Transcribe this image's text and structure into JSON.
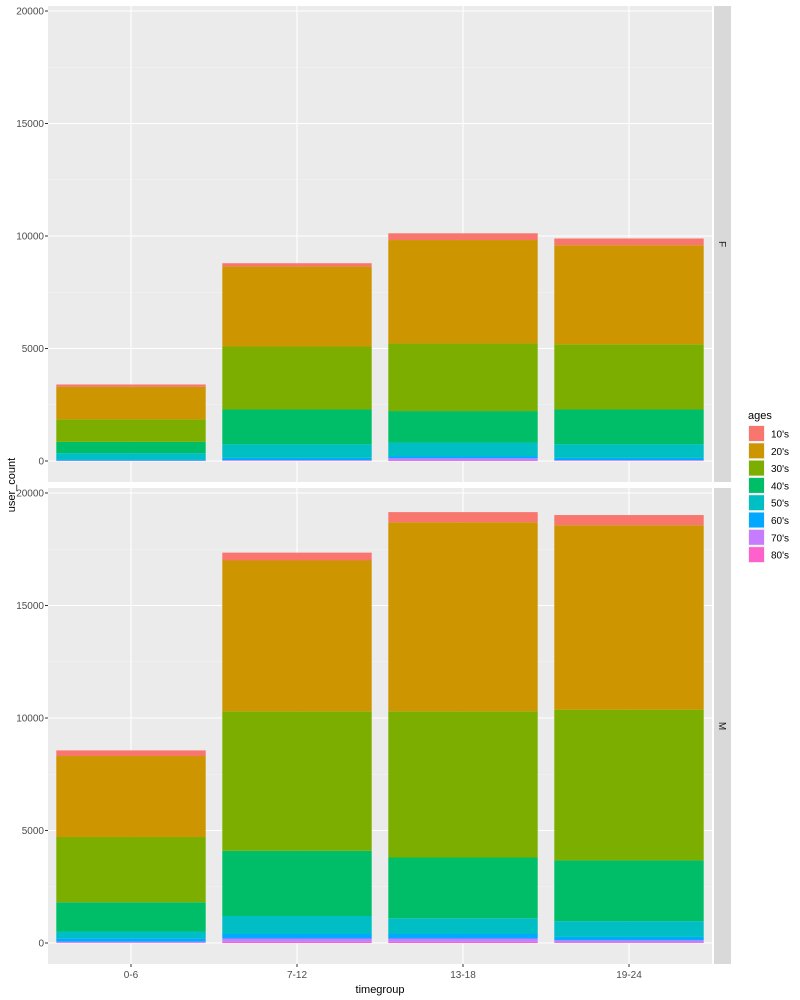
{
  "chart_data": {
    "type": "bar",
    "stacked": true,
    "facet": "row",
    "categories": [
      "0-6",
      "7-12",
      "13-18",
      "19-24"
    ],
    "xlabel": "timegroup",
    "ylabel": "user_count",
    "ylim": [
      0,
      20000
    ],
    "yticks": [
      0,
      5000,
      10000,
      15000,
      20000
    ],
    "grid": true,
    "legend": {
      "title": "ages",
      "position": "right"
    },
    "series_names": [
      "10's",
      "20's",
      "30's",
      "40's",
      "50's",
      "60's",
      "70's",
      "80's"
    ],
    "colors": [
      "#F8766D",
      "#CD9600",
      "#7CAE00",
      "#00BE67",
      "#00BFC4",
      "#00A9FF",
      "#C77CFF",
      "#FF61CC"
    ],
    "panels": [
      {
        "strip": "F",
        "series": [
          {
            "name": "10's",
            "values": [
              100,
              150,
              300,
              300
            ]
          },
          {
            "name": "20's",
            "values": [
              1450,
              3550,
              4600,
              4400
            ]
          },
          {
            "name": "30's",
            "values": [
              1000,
              2800,
              3000,
              2900
            ]
          },
          {
            "name": "40's",
            "values": [
              500,
              1550,
              1400,
              1550
            ]
          },
          {
            "name": "50's",
            "values": [
              280,
              600,
              600,
              600
            ]
          },
          {
            "name": "60's",
            "values": [
              50,
              100,
              100,
              100
            ]
          },
          {
            "name": "70's",
            "values": [
              15,
              30,
              100,
              30
            ]
          },
          {
            "name": "80's",
            "values": [
              5,
              10,
              20,
              10
            ]
          }
        ]
      },
      {
        "strip": "M",
        "series": [
          {
            "name": "10's",
            "values": [
              250,
              350,
              450,
              450
            ]
          },
          {
            "name": "20's",
            "values": [
              3600,
              6700,
              8400,
              8200
            ]
          },
          {
            "name": "30's",
            "values": [
              2900,
              6200,
              6500,
              6700
            ]
          },
          {
            "name": "40's",
            "values": [
              1300,
              2900,
              2700,
              2700
            ]
          },
          {
            "name": "50's",
            "values": [
              300,
              800,
              700,
              700
            ]
          },
          {
            "name": "60's",
            "values": [
              150,
              200,
              200,
              150
            ]
          },
          {
            "name": "70's",
            "values": [
              50,
              150,
              150,
              100
            ]
          },
          {
            "name": "80's",
            "values": [
              10,
              50,
              50,
              20
            ]
          }
        ]
      }
    ]
  }
}
